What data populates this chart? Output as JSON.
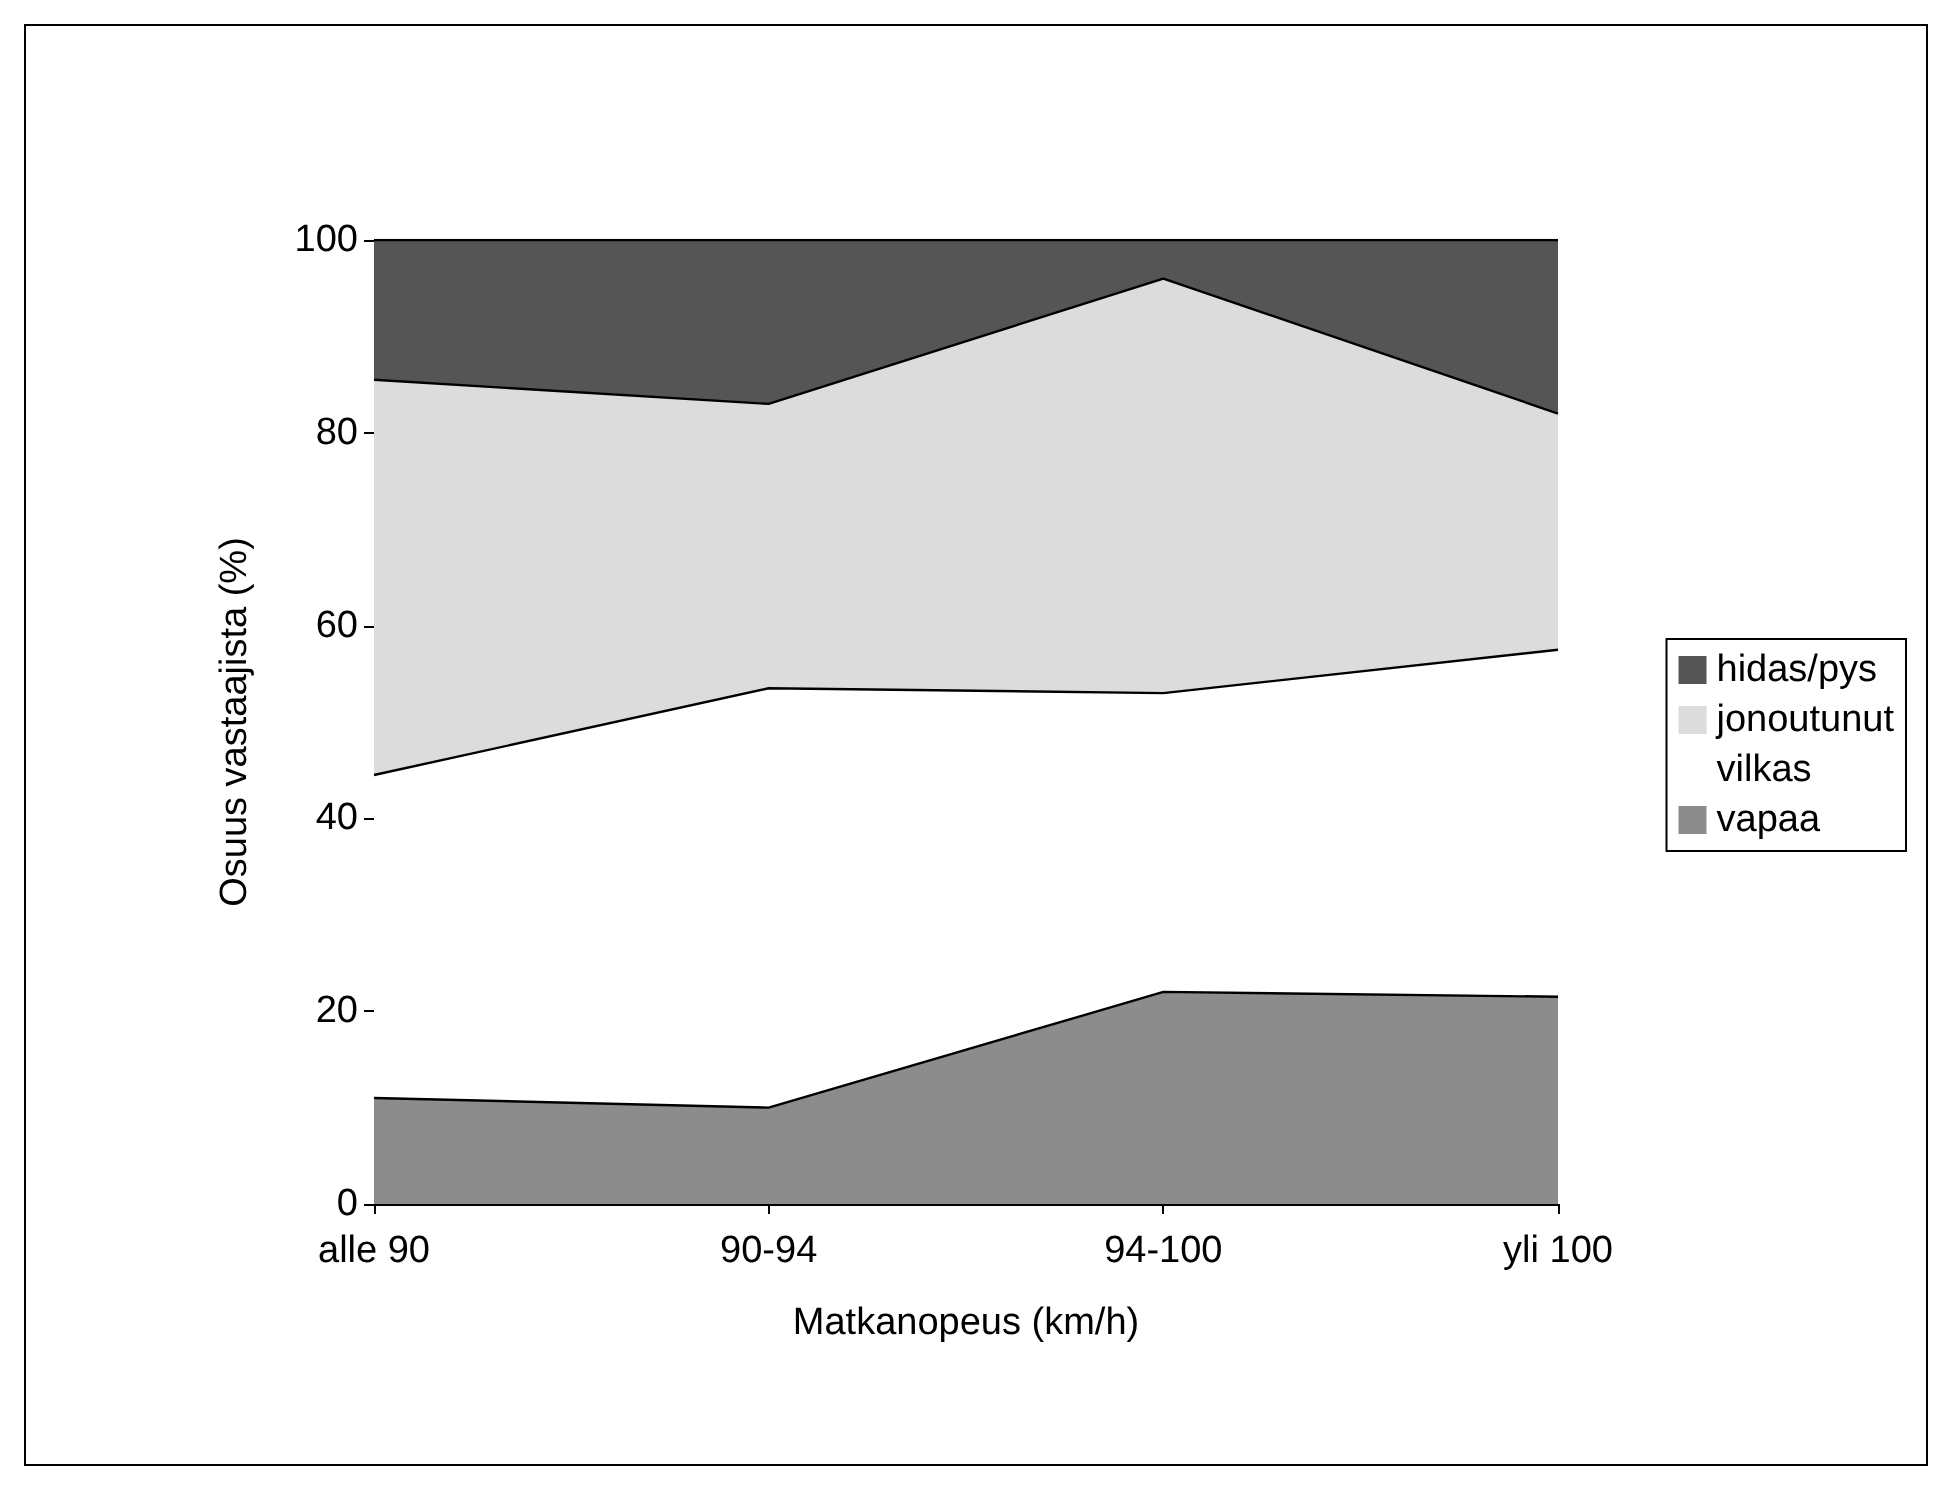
{
  "chart_data": {
    "type": "area",
    "stacked": true,
    "xlabel": "Matkanopeus (km/h)",
    "ylabel": "Osuus vastaajista (%)",
    "categories": [
      "alle 90",
      "90-94",
      "94-100",
      "yli 100"
    ],
    "series": [
      {
        "name": "vapaa",
        "color": "#8c8c8c",
        "values": [
          11,
          10,
          22,
          21.5
        ]
      },
      {
        "name": "vilkas",
        "color": "#ffffff",
        "values": [
          33.5,
          43.5,
          31,
          36
        ]
      },
      {
        "name": "jonoutunut",
        "color": "#dcdcdc",
        "values": [
          41,
          29.5,
          43,
          24.5
        ]
      },
      {
        "name": "hidas/pys",
        "color": "#555555",
        "values": [
          14.5,
          17,
          4,
          18
        ]
      }
    ],
    "ylim": [
      0,
      100
    ],
    "yticks": [
      0,
      20,
      40,
      60,
      80,
      100
    ],
    "grid": false,
    "legend": "right",
    "marker": "none"
  }
}
